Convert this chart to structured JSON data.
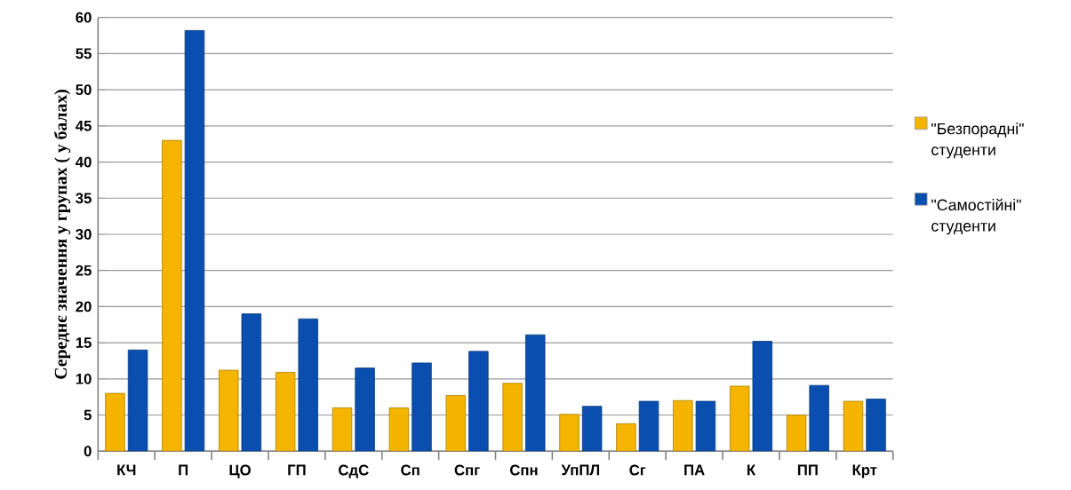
{
  "chart_data": {
    "type": "bar",
    "ylabel": "Середнє значення у групах ( у балах)",
    "categories": [
      "КЧ",
      "П",
      "ЦО",
      "ГП",
      "СдС",
      "Сп",
      "Спг",
      "Спн",
      "УпПЛ",
      "Сг",
      "ПА",
      "К",
      "ПП",
      "Крт"
    ],
    "series": [
      {
        "name": "\"Безпорадні\" студенти",
        "color": "#f5b400",
        "values": [
          8,
          43,
          11.2,
          10.9,
          6,
          6,
          7.7,
          9.4,
          5.1,
          3.8,
          7,
          9,
          5,
          6.9
        ]
      },
      {
        "name": "\"Самостійні\" студенти",
        "color": "#0a4fb0",
        "values": [
          14,
          58.2,
          19,
          18.3,
          11.5,
          12.2,
          13.8,
          16.1,
          6.2,
          6.9,
          6.9,
          15.2,
          9.1,
          7.2
        ]
      }
    ],
    "ylim": [
      0,
      60
    ],
    "yticks": [
      0,
      5,
      10,
      15,
      20,
      25,
      30,
      35,
      40,
      45,
      50,
      55,
      60
    ],
    "grid": "y",
    "legend": "right"
  }
}
